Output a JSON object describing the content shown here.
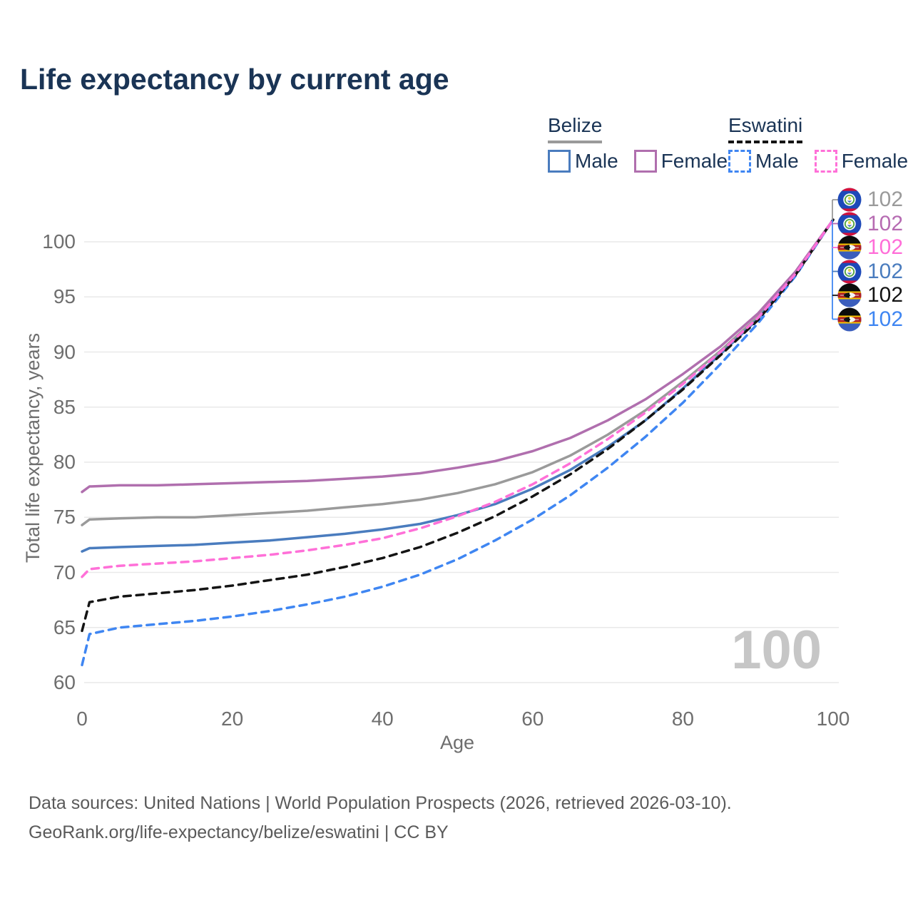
{
  "title": "Life expectancy by current age",
  "legend": {
    "groups": [
      {
        "country": "Belize",
        "line_style": "solid",
        "underline_color": "#9a9a9a",
        "items": [
          {
            "label": "Male",
            "color": "#4a7cbe"
          },
          {
            "label": "Female",
            "color": "#b06fae"
          }
        ]
      },
      {
        "country": "Eswatini",
        "line_style": "dashed",
        "underline_color": "#141414",
        "items": [
          {
            "label": "Male",
            "color": "#3f86f2"
          },
          {
            "label": "Female",
            "color": "#ff70d8"
          }
        ]
      }
    ]
  },
  "chart_data": {
    "type": "line",
    "title": "Life expectancy by current age",
    "xlabel": "Age",
    "ylabel": "Total life expectancy, years",
    "xlim": [
      0,
      100
    ],
    "ylim": [
      60,
      102
    ],
    "xticks": [
      0,
      20,
      40,
      60,
      80,
      100
    ],
    "yticks": [
      60,
      65,
      70,
      75,
      80,
      85,
      90,
      95,
      100
    ],
    "grid": "horizontal",
    "legend_position": "top-right",
    "ages": [
      0,
      1,
      5,
      10,
      15,
      20,
      25,
      30,
      35,
      40,
      45,
      50,
      55,
      60,
      65,
      70,
      75,
      80,
      85,
      90,
      95,
      100
    ],
    "series": [
      {
        "id": "belize_total",
        "name": "Belize",
        "color": "#9a9a9a",
        "dashed": false,
        "flag": "belize",
        "values": [
          74.3,
          74.8,
          74.9,
          75.0,
          75.0,
          75.2,
          75.4,
          75.6,
          75.9,
          76.2,
          76.6,
          77.2,
          78.0,
          79.1,
          80.6,
          82.5,
          84.7,
          87.3,
          90.1,
          93.2,
          97.2,
          102.0
        ]
      },
      {
        "id": "belize_male",
        "name": "Belize Male",
        "color": "#4a7cbe",
        "dashed": false,
        "flag": "belize",
        "values": [
          71.9,
          72.2,
          72.3,
          72.4,
          72.5,
          72.7,
          72.9,
          73.2,
          73.5,
          73.9,
          74.4,
          75.2,
          76.2,
          77.6,
          79.3,
          81.4,
          83.8,
          86.7,
          89.8,
          93.0,
          97.1,
          102.0
        ]
      },
      {
        "id": "belize_female",
        "name": "Belize Female",
        "color": "#b06fae",
        "dashed": false,
        "flag": "belize",
        "values": [
          77.3,
          77.8,
          77.9,
          77.9,
          78.0,
          78.1,
          78.2,
          78.3,
          78.5,
          78.7,
          79.0,
          79.5,
          80.1,
          81.0,
          82.2,
          83.8,
          85.7,
          88.0,
          90.5,
          93.5,
          97.3,
          102.0
        ]
      },
      {
        "id": "eswatini_male",
        "name": "Eswatini Male",
        "color": "#3f86f2",
        "dashed": true,
        "flag": "eswatini",
        "values": [
          61.6,
          64.4,
          65.0,
          65.3,
          65.6,
          66.0,
          66.5,
          67.1,
          67.8,
          68.7,
          69.8,
          71.2,
          72.9,
          74.8,
          77.0,
          79.5,
          82.3,
          85.4,
          88.9,
          92.6,
          96.9,
          102.0
        ]
      },
      {
        "id": "eswatini_total",
        "name": "Eswatini",
        "color": "#141414",
        "dashed": true,
        "flag": "eswatini",
        "values": [
          64.7,
          67.3,
          67.8,
          68.1,
          68.4,
          68.8,
          69.3,
          69.8,
          70.5,
          71.3,
          72.3,
          73.6,
          75.1,
          76.9,
          78.9,
          81.2,
          83.8,
          86.6,
          89.7,
          92.9,
          97.0,
          102.0
        ]
      },
      {
        "id": "eswatini_female",
        "name": "Eswatini Female",
        "color": "#ff70d8",
        "dashed": true,
        "flag": "eswatini",
        "values": [
          69.6,
          70.3,
          70.6,
          70.8,
          71.0,
          71.3,
          71.6,
          72.0,
          72.5,
          73.1,
          74.0,
          75.1,
          76.4,
          78.0,
          79.9,
          82.1,
          84.5,
          87.1,
          90.0,
          93.1,
          97.1,
          102.0
        ]
      }
    ],
    "end_labels": [
      {
        "series": "belize_total",
        "flag": "belize",
        "value": "102",
        "color": "#9a9a9a"
      },
      {
        "series": "belize_female",
        "flag": "belize",
        "value": "102",
        "color": "#b66bb2"
      },
      {
        "series": "eswatini_female",
        "flag": "eswatini",
        "value": "102",
        "color": "#ff6ed8"
      },
      {
        "series": "belize_male",
        "flag": "belize",
        "value": "102",
        "color": "#4a7cbe"
      },
      {
        "series": "eswatini_total",
        "flag": "eswatini",
        "value": "102",
        "color": "#141414"
      },
      {
        "series": "eswatini_male",
        "flag": "eswatini",
        "value": "102",
        "color": "#3f86f2"
      }
    ]
  },
  "watermark": "100",
  "footer": {
    "line1": "Data sources: United Nations | World Population Prospects (2026, retrieved 2026-03-10).",
    "line2": "GeoRank.org/life-expectancy/belize/eswatini | CC BY"
  }
}
